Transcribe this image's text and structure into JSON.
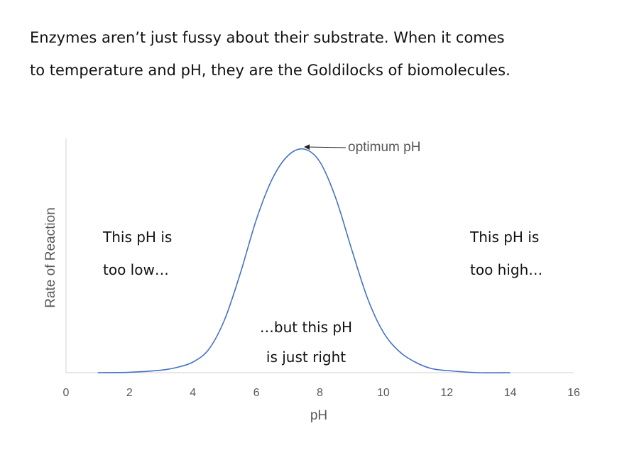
{
  "intro": {
    "line1": "Enzymes aren’t just fussy about their substrate. When it comes",
    "line2": "to temperature and pH, they are the Goldilocks of biomolecules."
  },
  "chart_data": {
    "type": "line",
    "title": "",
    "xlabel": "pH",
    "ylabel": "Rate of Reaction",
    "xlim": [
      0,
      16
    ],
    "ylim": [
      0,
      1.1
    ],
    "xticks": [
      0,
      2,
      4,
      6,
      8,
      10,
      12,
      14,
      16
    ],
    "y_tick_labels_shown": false,
    "grid": false,
    "legend": "none",
    "series": [
      {
        "color": "#4472C4",
        "x": [
          1,
          2,
          3,
          3.5,
          4,
          4.5,
          5,
          5.5,
          6,
          6.5,
          7,
          7.5,
          8,
          8.5,
          9,
          9.5,
          10,
          10.5,
          11,
          11.5,
          12,
          13,
          14
        ],
        "y": [
          0.0,
          0.002,
          0.012,
          0.025,
          0.05,
          0.11,
          0.25,
          0.47,
          0.72,
          0.91,
          1.02,
          1.05,
          0.99,
          0.82,
          0.58,
          0.35,
          0.19,
          0.1,
          0.05,
          0.02,
          0.01,
          0.0,
          0.0
        ]
      }
    ],
    "annotations": {
      "optimum": {
        "text": "optimum pH",
        "x": 7.5,
        "y": 1.05
      },
      "low": [
        "This pH is",
        "too low…"
      ],
      "right": [
        "…but this pH",
        "is just right"
      ],
      "high": [
        "This pH is",
        "too high…"
      ]
    }
  }
}
